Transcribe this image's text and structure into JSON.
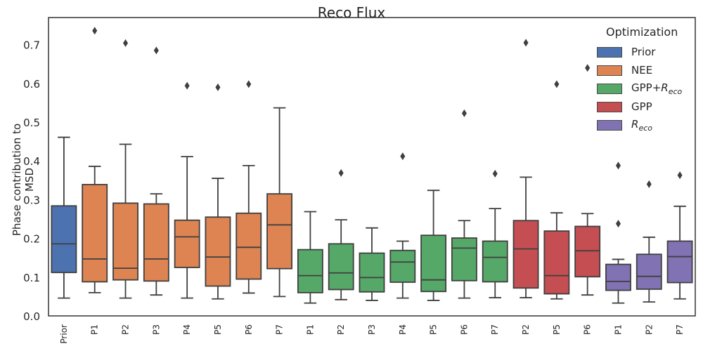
{
  "chart_data": {
    "type": "box",
    "title": "Reco Flux",
    "ylabel": "Phase contribution to MSD",
    "xlabel": "",
    "ylim": [
      0,
      0.77
    ],
    "yticks": [
      0.0,
      0.1,
      0.2,
      0.3,
      0.4,
      0.5,
      0.6,
      0.7
    ],
    "ytick_labels": [
      "0.0",
      "0.1",
      "0.2",
      "0.3",
      "0.4",
      "0.5",
      "0.6",
      "0.7"
    ],
    "grid": false,
    "legend_title": "Optimization",
    "legend_position": "top-right",
    "series": [
      {
        "name": "Prior",
        "color": "#4c72b0"
      },
      {
        "name": "NEE",
        "color": "#dd8452"
      },
      {
        "name": "GPP+R_eco",
        "color": "#55a868",
        "name_base": "GPP+",
        "name_sub": "R",
        "name_subscript": "eco"
      },
      {
        "name": "GPP",
        "color": "#c44e52"
      },
      {
        "name": "R_eco",
        "color": "#8172b3",
        "name_base": "",
        "name_sub": "R",
        "name_subscript": "eco"
      }
    ],
    "boxes": [
      {
        "label": "Prior",
        "series": 0,
        "whislo": 0.046,
        "q1": 0.112,
        "med": 0.186,
        "q3": 0.284,
        "whishi": 0.461,
        "fliers": []
      },
      {
        "label": "P1",
        "series": 1,
        "whislo": 0.06,
        "q1": 0.088,
        "med": 0.147,
        "q3": 0.339,
        "whishi": 0.386,
        "fliers": [
          0.736
        ]
      },
      {
        "label": "P2",
        "series": 1,
        "whislo": 0.046,
        "q1": 0.093,
        "med": 0.123,
        "q3": 0.291,
        "whishi": 0.443,
        "fliers": [
          0.704
        ]
      },
      {
        "label": "P3",
        "series": 1,
        "whislo": 0.054,
        "q1": 0.09,
        "med": 0.147,
        "q3": 0.289,
        "whishi": 0.315,
        "fliers": [
          0.685
        ]
      },
      {
        "label": "P4",
        "series": 1,
        "whislo": 0.046,
        "q1": 0.125,
        "med": 0.204,
        "q3": 0.247,
        "whishi": 0.411,
        "fliers": [
          0.594
        ]
      },
      {
        "label": "P5",
        "series": 1,
        "whislo": 0.044,
        "q1": 0.077,
        "med": 0.152,
        "q3": 0.255,
        "whishi": 0.355,
        "fliers": [
          0.59
        ]
      },
      {
        "label": "P6",
        "series": 1,
        "whislo": 0.059,
        "q1": 0.095,
        "med": 0.177,
        "q3": 0.265,
        "whishi": 0.388,
        "fliers": [
          0.598
        ]
      },
      {
        "label": "P7",
        "series": 1,
        "whislo": 0.05,
        "q1": 0.122,
        "med": 0.235,
        "q3": 0.315,
        "whishi": 0.537,
        "fliers": []
      },
      {
        "label": "P1",
        "series": 2,
        "whislo": 0.033,
        "q1": 0.06,
        "med": 0.104,
        "q3": 0.171,
        "whishi": 0.269,
        "fliers": []
      },
      {
        "label": "P2",
        "series": 2,
        "whislo": 0.042,
        "q1": 0.068,
        "med": 0.111,
        "q3": 0.186,
        "whishi": 0.248,
        "fliers": [
          0.369
        ]
      },
      {
        "label": "P3",
        "series": 2,
        "whislo": 0.04,
        "q1": 0.062,
        "med": 0.099,
        "q3": 0.162,
        "whishi": 0.227,
        "fliers": []
      },
      {
        "label": "P4",
        "series": 2,
        "whislo": 0.046,
        "q1": 0.087,
        "med": 0.139,
        "q3": 0.169,
        "whishi": 0.193,
        "fliers": [
          0.412
        ]
      },
      {
        "label": "P5",
        "series": 2,
        "whislo": 0.04,
        "q1": 0.063,
        "med": 0.093,
        "q3": 0.208,
        "whishi": 0.324,
        "fliers": []
      },
      {
        "label": "P6",
        "series": 2,
        "whislo": 0.046,
        "q1": 0.091,
        "med": 0.175,
        "q3": 0.201,
        "whishi": 0.246,
        "fliers": [
          0.523
        ]
      },
      {
        "label": "P7",
        "series": 2,
        "whislo": 0.047,
        "q1": 0.088,
        "med": 0.151,
        "q3": 0.193,
        "whishi": 0.277,
        "fliers": [
          0.367
        ]
      },
      {
        "label": "P2",
        "series": 3,
        "whislo": 0.047,
        "q1": 0.072,
        "med": 0.173,
        "q3": 0.246,
        "whishi": 0.358,
        "fliers": [
          0.705
        ]
      },
      {
        "label": "P5",
        "series": 3,
        "whislo": 0.044,
        "q1": 0.057,
        "med": 0.104,
        "q3": 0.219,
        "whishi": 0.266,
        "fliers": [
          0.598
        ]
      },
      {
        "label": "P6",
        "series": 3,
        "whislo": 0.054,
        "q1": 0.101,
        "med": 0.168,
        "q3": 0.231,
        "whishi": 0.264,
        "fliers": [
          0.64
        ]
      },
      {
        "label": "P1",
        "series": 4,
        "whislo": 0.033,
        "q1": 0.066,
        "med": 0.089,
        "q3": 0.133,
        "whishi": 0.146,
        "fliers": [
          0.238,
          0.388
        ]
      },
      {
        "label": "P2",
        "series": 4,
        "whislo": 0.036,
        "q1": 0.069,
        "med": 0.102,
        "q3": 0.159,
        "whishi": 0.203,
        "fliers": [
          0.34
        ]
      },
      {
        "label": "P7",
        "series": 4,
        "whislo": 0.044,
        "q1": 0.086,
        "med": 0.153,
        "q3": 0.193,
        "whishi": 0.283,
        "fliers": [
          0.363
        ]
      }
    ]
  }
}
